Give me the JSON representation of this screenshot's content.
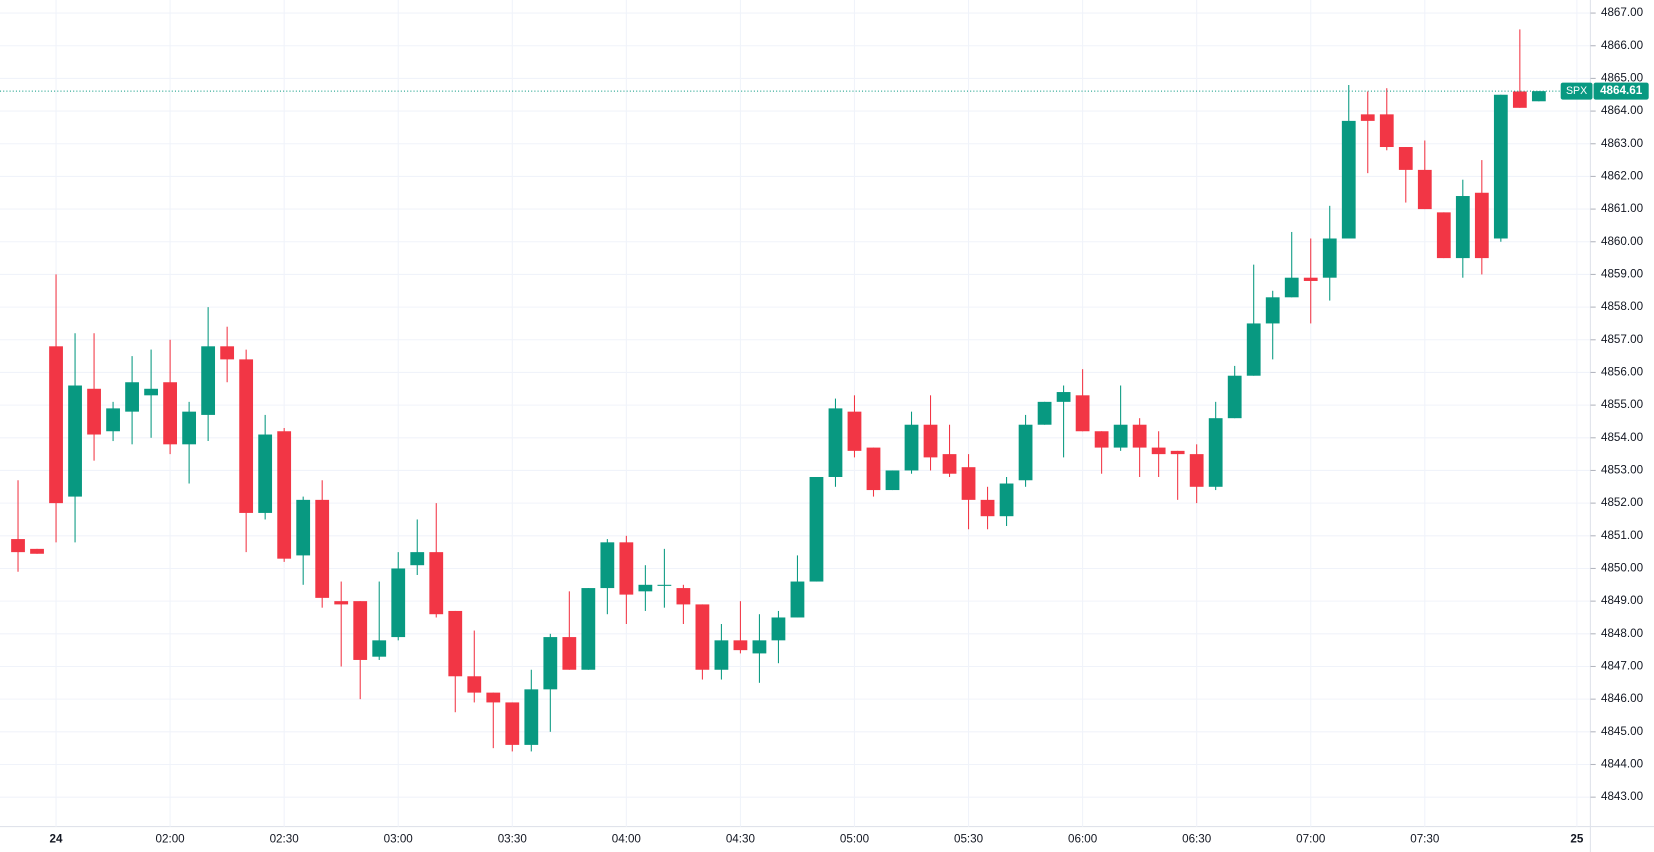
{
  "chart_data": {
    "type": "candlestick",
    "symbol": "SPX",
    "last_price": 4864.61,
    "up_color": "#089981",
    "down_color": "#f23645",
    "grid": true,
    "categories": [
      null,
      null,
      "24",
      null,
      null,
      null,
      null,
      null,
      "02:00",
      null,
      null,
      null,
      null,
      null,
      "02:30",
      null,
      null,
      null,
      null,
      null,
      "03:00",
      null,
      null,
      null,
      null,
      null,
      "03:30",
      null,
      null,
      null,
      null,
      null,
      "04:00",
      null,
      null,
      null,
      null,
      null,
      "04:30",
      null,
      null,
      null,
      null,
      null,
      "05:00",
      null,
      null,
      null,
      null,
      null,
      "05:30",
      null,
      null,
      null,
      null,
      null,
      "06:00",
      null,
      null,
      null,
      null,
      null,
      "06:30",
      null,
      null,
      null,
      null,
      null,
      "07:00",
      null,
      null,
      null,
      null,
      null,
      "07:30",
      null,
      null,
      null,
      null,
      null,
      null,
      null,
      "25"
    ],
    "open": [
      4850.9,
      4850.6,
      4856.8,
      4852.2,
      4855.5,
      4854.2,
      4854.8,
      4855.3,
      4855.7,
      4853.8,
      4854.7,
      4856.8,
      4856.4,
      4851.7,
      4854.2,
      4850.4,
      4852.1,
      4849.0,
      4849.0,
      4847.3,
      4847.9,
      4850.1,
      4850.5,
      4848.7,
      4846.7,
      4846.2,
      4845.9,
      4844.6,
      4846.3,
      4847.9,
      4846.9,
      4849.4,
      4850.8,
      4849.3,
      4849.5,
      4849.4,
      4848.9,
      4846.9,
      4847.8,
      4847.4,
      4847.8,
      4848.5,
      4849.6,
      4852.8,
      4854.8,
      4853.7,
      4852.4,
      4853.0,
      4854.4,
      4853.5,
      4853.1,
      4852.1,
      4851.6,
      4852.7,
      4854.4,
      4855.1,
      4855.3,
      4854.2,
      4853.7,
      4854.4,
      4853.7,
      4853.6,
      4853.5,
      4852.5,
      4854.6,
      4855.9,
      4857.5,
      4858.3,
      4858.9,
      4858.9,
      4860.1,
      4863.9,
      4863.9,
      4862.9,
      4862.2,
      4860.9,
      4859.5,
      4861.5,
      4860.1,
      4864.6,
      4864.3,
      null,
      null
    ],
    "high": [
      4852.7,
      4850.6,
      4859.0,
      4857.2,
      4857.2,
      4855.1,
      4856.5,
      4856.7,
      4857.0,
      4855.1,
      4858.0,
      4857.4,
      4856.7,
      4854.7,
      4854.3,
      4852.2,
      4852.7,
      4849.6,
      4849.0,
      4849.6,
      4850.5,
      4851.5,
      4852.0,
      4848.7,
      4848.1,
      4846.2,
      4845.9,
      4846.9,
      4848.0,
      4849.3,
      4849.4,
      4850.9,
      4851.0,
      4850.1,
      4850.6,
      4849.5,
      4848.9,
      4848.3,
      4849.0,
      4848.6,
      4848.7,
      4850.4,
      4852.8,
      4855.2,
      4855.3,
      4853.7,
      4853.0,
      4854.8,
      4855.3,
      4854.4,
      4853.5,
      4852.5,
      4852.8,
      4854.7,
      4855.1,
      4855.6,
      4856.1,
      4854.2,
      4855.6,
      4854.6,
      4854.2,
      4853.6,
      4853.8,
      4855.1,
      4856.2,
      4859.3,
      4858.5,
      4860.3,
      4860.1,
      4861.1,
      4864.8,
      4864.6,
      4864.7,
      4862.9,
      4863.1,
      4860.9,
      4861.9,
      4862.5,
      4864.5,
      4866.5,
      4864.61,
      null,
      null
    ],
    "low": [
      4849.9,
      4850.45,
      4850.8,
      4850.8,
      4853.3,
      4853.9,
      4853.8,
      4854.0,
      4853.5,
      4852.6,
      4853.9,
      4855.7,
      4850.5,
      4851.5,
      4850.2,
      4849.5,
      4848.8,
      4847.0,
      4846.0,
      4847.2,
      4847.8,
      4849.8,
      4848.5,
      4845.6,
      4845.9,
      4844.5,
      4844.4,
      4844.4,
      4845.0,
      4846.9,
      4846.9,
      4848.6,
      4848.3,
      4848.7,
      4848.8,
      4848.3,
      4846.6,
      4846.6,
      4847.4,
      4846.5,
      4847.1,
      4848.5,
      4849.6,
      4852.5,
      4853.4,
      4852.2,
      4852.4,
      4852.9,
      4853.0,
      4852.8,
      4851.2,
      4851.2,
      4851.3,
      4852.5,
      4854.4,
      4853.4,
      4854.2,
      4852.9,
      4853.6,
      4852.8,
      4852.8,
      4852.1,
      4852.0,
      4852.4,
      4854.6,
      4855.9,
      4856.4,
      4858.3,
      4857.5,
      4858.2,
      4860.1,
      4862.1,
      4862.8,
      4861.2,
      4861.0,
      4859.5,
      4858.9,
      4859.0,
      4860.0,
      4864.1,
      4864.3,
      null,
      null
    ],
    "close": [
      4850.5,
      4850.45,
      4852.0,
      4855.6,
      4854.1,
      4854.9,
      4855.7,
      4855.5,
      4853.8,
      4854.8,
      4856.8,
      4856.4,
      4851.7,
      4854.1,
      4850.3,
      4852.1,
      4849.1,
      4848.9,
      4847.2,
      4847.8,
      4850.0,
      4850.5,
      4848.6,
      4846.7,
      4846.2,
      4845.9,
      4844.6,
      4846.3,
      4847.9,
      4846.9,
      4849.4,
      4850.8,
      4849.2,
      4849.5,
      4849.5,
      4848.9,
      4846.9,
      4847.8,
      4847.5,
      4847.8,
      4848.5,
      4849.6,
      4852.8,
      4854.9,
      4853.6,
      4852.4,
      4853.0,
      4854.4,
      4853.4,
      4852.9,
      4852.1,
      4851.6,
      4852.6,
      4854.4,
      4855.1,
      4855.4,
      4854.2,
      4853.7,
      4854.4,
      4853.7,
      4853.5,
      4853.5,
      4852.5,
      4854.6,
      4855.9,
      4857.5,
      4858.3,
      4858.9,
      4858.8,
      4860.1,
      4863.7,
      4863.7,
      4862.9,
      4862.2,
      4861.0,
      4859.5,
      4861.4,
      4859.5,
      4864.5,
      4864.1,
      4864.61,
      null,
      null
    ],
    "ylim": [
      4842.1,
      4867.4
    ],
    "yticks": [
      {
        "value": 4843,
        "label": "4843.00"
      },
      {
        "value": 4844,
        "label": "4844.00"
      },
      {
        "value": 4845,
        "label": "4845.00"
      },
      {
        "value": 4846,
        "label": "4846.00"
      },
      {
        "value": 4847,
        "label": "4847.00"
      },
      {
        "value": 4848,
        "label": "4848.00"
      },
      {
        "value": 4849,
        "label": "4849.00"
      },
      {
        "value": 4850,
        "label": "4850.00"
      },
      {
        "value": 4851,
        "label": "4851.00"
      },
      {
        "value": 4852,
        "label": "4852.00"
      },
      {
        "value": 4853,
        "label": "4853.00"
      },
      {
        "value": 4854,
        "label": "4854.00"
      },
      {
        "value": 4855,
        "label": "4855.00"
      },
      {
        "value": 4856,
        "label": "4856.00"
      },
      {
        "value": 4857,
        "label": "4857.00"
      },
      {
        "value": 4858,
        "label": "4858.00"
      },
      {
        "value": 4859,
        "label": "4859.00"
      },
      {
        "value": 4860,
        "label": "4860.00"
      },
      {
        "value": 4861,
        "label": "4861.00"
      },
      {
        "value": 4862,
        "label": "4862.00"
      },
      {
        "value": 4863,
        "label": "4863.00"
      },
      {
        "value": 4864,
        "label": "4864.00"
      },
      {
        "value": 4865,
        "label": "4865.00"
      },
      {
        "value": 4866,
        "label": "4866.00"
      },
      {
        "value": 4867,
        "label": "4867.00"
      }
    ]
  }
}
